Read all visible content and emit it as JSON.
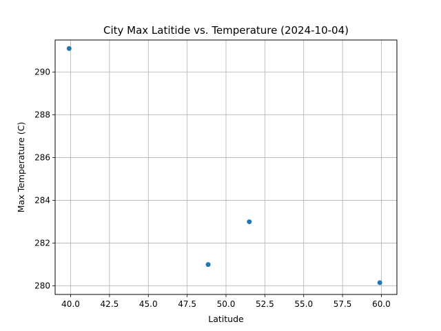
{
  "chart_data": {
    "type": "scatter",
    "title": "City Max Latitide vs. Temperature (2024-10-04)",
    "xlabel": "Latitude",
    "ylabel": "Max Temperature (C)",
    "xlim": [
      39.0,
      61.0
    ],
    "ylim": [
      279.6,
      291.5
    ],
    "x_ticks": [
      40.0,
      42.5,
      45.0,
      47.5,
      50.0,
      52.5,
      55.0,
      57.5,
      60.0
    ],
    "x_tick_labels": [
      "40.0",
      "42.5",
      "45.0",
      "47.5",
      "50.0",
      "52.5",
      "55.0",
      "57.5",
      "60.0"
    ],
    "y_ticks": [
      280,
      282,
      284,
      286,
      288,
      290
    ],
    "y_tick_labels": [
      "280",
      "282",
      "284",
      "286",
      "288",
      "290"
    ],
    "grid": true,
    "legend": "none",
    "point_color": "#1f77b4",
    "points": [
      {
        "x": 39.9,
        "y": 291.1
      },
      {
        "x": 48.85,
        "y": 281.0
      },
      {
        "x": 51.5,
        "y": 283.0
      },
      {
        "x": 59.9,
        "y": 280.15
      }
    ]
  }
}
